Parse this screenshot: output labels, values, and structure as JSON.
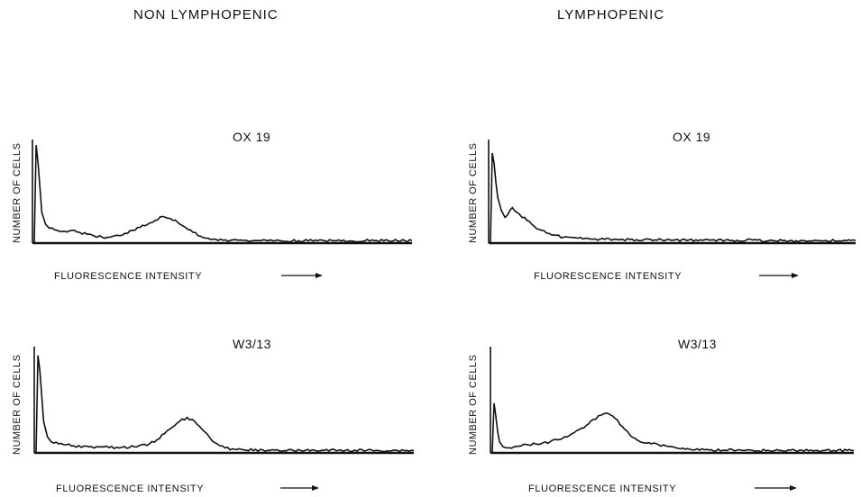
{
  "columns": {
    "left_title": "NON LYMPHOPENIC",
    "right_title": "LYMPHOPENIC"
  },
  "chart_data": [
    {
      "type": "area",
      "column": "NON LYMPHOPENIC",
      "panel_label": "OX 19",
      "xlabel": "FLUORESCENCE INTENSITY",
      "ylabel": "NUMBER OF CELLS",
      "xlim": [
        0,
        100
      ],
      "ylim": [
        0,
        100
      ],
      "x": [
        0,
        0.5,
        1,
        1.5,
        2,
        3,
        4,
        6,
        8,
        10,
        12,
        14,
        16,
        18,
        20,
        22,
        24,
        26,
        28,
        30,
        32,
        34,
        36,
        38,
        40,
        42,
        44,
        46,
        48,
        50,
        52,
        54,
        56,
        58,
        60,
        65,
        70,
        80,
        90,
        100
      ],
      "values": [
        0,
        98,
        80,
        55,
        30,
        18,
        14,
        12,
        11,
        12,
        10,
        8,
        6,
        5,
        5,
        7,
        9,
        12,
        15,
        18,
        22,
        26,
        24,
        20,
        15,
        10,
        6,
        4,
        3,
        2,
        2,
        2,
        2,
        1.5,
        1.5,
        1.5,
        1.5,
        1.5,
        1.5,
        1.5
      ]
    },
    {
      "type": "area",
      "column": "LYMPHOPENIC",
      "panel_label": "OX 19",
      "xlabel": "FLUORESCENCE INTENSITY",
      "ylabel": "NUMBER OF CELLS",
      "xlim": [
        0,
        100
      ],
      "ylim": [
        0,
        100
      ],
      "x": [
        0,
        0.5,
        1,
        1.5,
        2,
        3,
        4,
        6,
        8,
        10,
        12,
        14,
        16,
        18,
        20,
        22,
        24,
        26,
        28,
        30,
        35,
        40,
        50,
        60,
        70,
        80,
        90,
        100
      ],
      "values": [
        0,
        90,
        80,
        60,
        45,
        32,
        25,
        35,
        28,
        22,
        16,
        12,
        9,
        7,
        5,
        5,
        4,
        4,
        3,
        3,
        2.5,
        2.5,
        2,
        2,
        2,
        1.5,
        1.5,
        1.5
      ]
    },
    {
      "type": "area",
      "column": "NON LYMPHOPENIC",
      "panel_label": "W3/13",
      "xlabel": "FLUORESCENCE INTENSITY",
      "ylabel": "NUMBER OF CELLS",
      "xlim": [
        0,
        100
      ],
      "ylim": [
        0,
        100
      ],
      "x": [
        0,
        0.5,
        1,
        1.5,
        2,
        3,
        4,
        6,
        8,
        10,
        14,
        18,
        22,
        26,
        30,
        32,
        34,
        36,
        38,
        40,
        42,
        44,
        46,
        48,
        50,
        52,
        55,
        60,
        70,
        80,
        90,
        100
      ],
      "values": [
        0,
        95,
        80,
        55,
        30,
        15,
        10,
        8,
        7,
        6,
        5,
        5,
        4,
        5,
        8,
        12,
        18,
        24,
        30,
        34,
        30,
        22,
        14,
        8,
        4,
        3,
        2,
        2,
        1.5,
        1.5,
        1.5,
        1.5
      ]
    },
    {
      "type": "area",
      "column": "LYMPHOPENIC",
      "panel_label": "W3/13",
      "xlabel": "FLUORESCENCE INTENSITY",
      "ylabel": "NUMBER OF CELLS",
      "xlim": [
        0,
        100
      ],
      "ylim": [
        0,
        100
      ],
      "x": [
        0,
        0.5,
        1,
        1.5,
        2,
        3,
        4,
        6,
        8,
        10,
        12,
        14,
        16,
        18,
        20,
        22,
        24,
        26,
        28,
        30,
        32,
        34,
        36,
        38,
        40,
        42,
        44,
        46,
        48,
        50,
        52,
        56,
        60,
        70,
        80,
        90,
        100
      ],
      "values": [
        0,
        48,
        35,
        20,
        10,
        5,
        4,
        5,
        6,
        7,
        8,
        9,
        10,
        12,
        15,
        18,
        22,
        26,
        32,
        36,
        38,
        33,
        25,
        17,
        12,
        9,
        8,
        7,
        6,
        5,
        3,
        2,
        2,
        1.5,
        1.5,
        1.5,
        1.5
      ]
    }
  ]
}
